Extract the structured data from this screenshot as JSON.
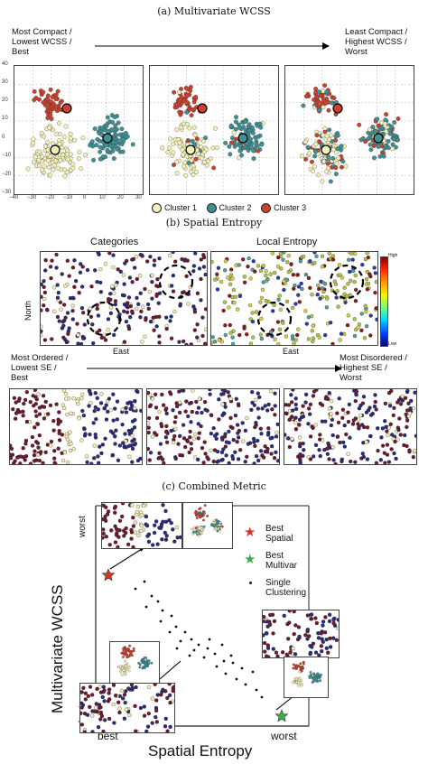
{
  "captions": {
    "a": "(a) Multivariate WCSS",
    "b": "(b) Spatial Entropy",
    "c": "(c) Combined Metric"
  },
  "section_a": {
    "left_label": "Most Compact /\nLowest WCSS /\nBest",
    "right_label": "Least Compact /\nHighest WCSS /\nWorst",
    "y_ticks": [
      "40",
      "30",
      "20",
      "10",
      "0",
      "−10",
      "−20",
      "−30"
    ],
    "x_ticks": [
      "−40",
      "−30",
      "−20",
      "−10",
      "0",
      "10",
      "20",
      "30"
    ],
    "legend": [
      {
        "label": "Cluster 1",
        "color": "#f3f0b8"
      },
      {
        "label": "Cluster 2",
        "color": "#3f8f93"
      },
      {
        "label": "Cluster 3",
        "color": "#c9412f"
      }
    ]
  },
  "section_b": {
    "categories_title": "Categories",
    "entropy_title": "Local Entropy",
    "north": "North",
    "east_left": "East",
    "east_right": "East",
    "colorbar_high": "High",
    "colorbar_low": "Low",
    "left_label": "Most Ordered /\nLowest SE /\nBest",
    "right_label": "Most Disordered /\nHighest SE /\nWorst"
  },
  "section_c": {
    "ylabel": "Multivariate WCSS",
    "xlabel": "Spatial Entropy",
    "y_worst": "worst",
    "y_best": "best",
    "x_best": "best",
    "x_worst": "worst",
    "legend": {
      "best_spatial": "Best\nSpatial",
      "best_multivar": "Best\nMultivar",
      "single": "Single\nClustering"
    }
  },
  "colors": {
    "yellow": "#f3f0b8",
    "teal": "#3f8f93",
    "red": "#c9412f",
    "navy": "#2b2c7a",
    "maroon": "#6e1a2e",
    "star_red": "#d8352a",
    "star_green": "#3faa4a"
  }
}
